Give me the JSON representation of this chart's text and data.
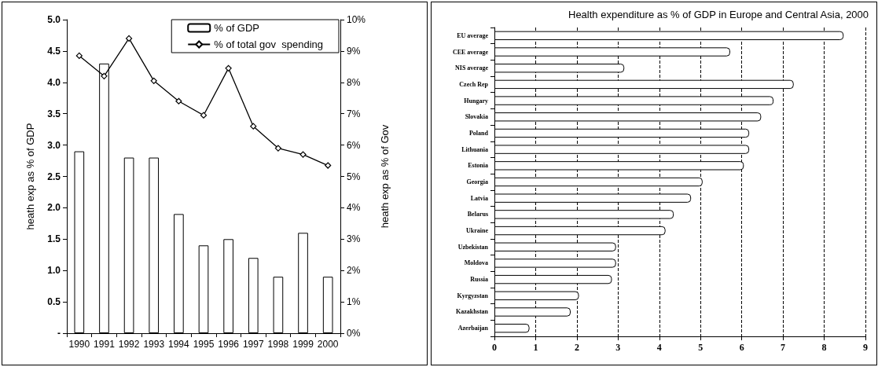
{
  "chart_data": [
    {
      "type": "bar",
      "categories": [
        "1990",
        "1991",
        "1992",
        "1993",
        "1994",
        "1995",
        "1996",
        "1997",
        "1998",
        "1999",
        "2000"
      ],
      "ylabel": "heath exp as % of GDP",
      "y2label": "heath exp as % of Gov",
      "series": [
        {
          "name": "% of GDP",
          "color": "#ffffff",
          "values": [
            2.9,
            4.3,
            2.8,
            2.8,
            1.9,
            1.4,
            1.5,
            1.2,
            0.9,
            1.6,
            0.9
          ]
        },
        {
          "name": "% of total gov  spending",
          "type": "line",
          "axis": "y2",
          "color": "#000000",
          "marker": "diamond",
          "values": [
            8.85,
            8.2,
            9.4,
            8.05,
            7.4,
            6.95,
            8.45,
            6.6,
            5.9,
            5.7,
            5.35
          ]
        }
      ],
      "ylim": [
        0,
        5
      ],
      "yticks": [
        {
          "value": 0,
          "label": "-"
        },
        {
          "value": 0.5,
          "label": "0.5"
        },
        {
          "value": 1,
          "label": "1.0"
        },
        {
          "value": 1.5,
          "label": "1.5"
        },
        {
          "value": 2,
          "label": "2.0"
        },
        {
          "value": 2.5,
          "label": "2.5"
        },
        {
          "value": 3,
          "label": "3.0"
        },
        {
          "value": 3.5,
          "label": "3.5"
        },
        {
          "value": 4,
          "label": "4.0"
        },
        {
          "value": 4.5,
          "label": "4.5"
        },
        {
          "value": 5,
          "label": "5.0"
        }
      ],
      "y2lim": [
        0,
        10
      ],
      "y2ticks": [
        {
          "value": 0,
          "label": "0%"
        },
        {
          "value": 1,
          "label": "1%"
        },
        {
          "value": 2,
          "label": "2%"
        },
        {
          "value": 3,
          "label": "3%"
        },
        {
          "value": 4,
          "label": "4%"
        },
        {
          "value": 5,
          "label": "5%"
        },
        {
          "value": 6,
          "label": "6%"
        },
        {
          "value": 7,
          "label": "7%"
        },
        {
          "value": 8,
          "label": "8%"
        },
        {
          "value": 9,
          "label": "9%"
        },
        {
          "value": 10,
          "label": "10%"
        }
      ],
      "grid": false,
      "legend": "top right"
    },
    {
      "type": "bar",
      "orientation": "horizontal",
      "title": "Health expenditure as % of GDP in Europe and Central Asia, 2000",
      "categories": [
        "EU average",
        "CEE average",
        "NIS average",
        "Czech Rep",
        "Hungary",
        "Slovakia",
        "Poland",
        "Lithuania",
        "Estonia",
        "Georgia",
        "Latvia",
        "Belarus",
        "Ukraine",
        "Uzbekistan",
        "Moldova",
        "Russia",
        "Kyrgyzstan",
        "Kazakhstan",
        "Azerbaijan"
      ],
      "color": "#ffffff",
      "values": [
        8.47,
        5.72,
        3.15,
        7.26,
        6.77,
        6.47,
        6.18,
        6.18,
        6.05,
        5.05,
        4.77,
        4.35,
        4.15,
        2.95,
        2.95,
        2.85,
        2.05,
        1.85,
        0.85
      ],
      "xlim": [
        0,
        9
      ],
      "xticks": [
        0,
        1,
        2,
        3,
        4,
        5,
        6,
        7,
        8,
        9
      ],
      "grid": "x",
      "legend": false
    }
  ]
}
